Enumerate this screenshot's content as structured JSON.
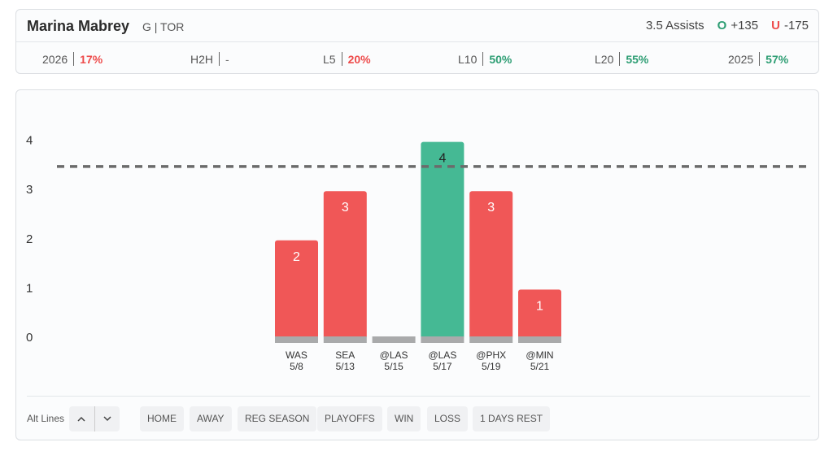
{
  "player": {
    "name": "Marina Mabrey",
    "meta": "G | TOR",
    "prop": "3.5 Assists",
    "over_tag": "O",
    "over_odds": "+135",
    "under_tag": "U",
    "under_odds": "-175"
  },
  "stats": [
    {
      "label": "2026",
      "value": "17%",
      "tone": "red"
    },
    {
      "label": "H2H",
      "value": "-",
      "tone": "neutral"
    },
    {
      "label": "L5",
      "value": "20%",
      "tone": "red"
    },
    {
      "label": "L10",
      "value": "50%",
      "tone": "green"
    },
    {
      "label": "L20",
      "value": "55%",
      "tone": "green"
    },
    {
      "label": "2025",
      "value": "57%",
      "tone": "green"
    }
  ],
  "colors": {
    "over": "#45b994",
    "under": "#f05757",
    "base": "#a9aaab",
    "line": "#6b6b6b",
    "green_text": "#2e9e74",
    "red_text": "#ee4b4b"
  },
  "chart_data": {
    "type": "bar",
    "title": "",
    "xlabel": "",
    "ylabel": "",
    "ylim": [
      0,
      4
    ],
    "yticks": [
      "0",
      "1",
      "2",
      "3",
      "4"
    ],
    "line_value": 3.5,
    "categories": [
      {
        "opponent": "WAS",
        "date": "5/8",
        "value": 2
      },
      {
        "opponent": "SEA",
        "date": "5/13",
        "value": 3
      },
      {
        "opponent": "@LAS",
        "date": "5/15",
        "value": 0
      },
      {
        "opponent": "@LAS",
        "date": "5/17",
        "value": 4
      },
      {
        "opponent": "@PHX",
        "date": "5/19",
        "value": 3
      },
      {
        "opponent": "@MIN",
        "date": "5/21",
        "value": 1
      }
    ],
    "grid": false,
    "legend": "none"
  },
  "filters": {
    "alt_lines_label": "Alt Lines",
    "stepper_up": "^",
    "stepper_down": "v",
    "chips": [
      "HOME",
      "AWAY",
      "REG SEASON",
      "PLAYOFFS",
      "WIN",
      "LOSS",
      "1 DAYS REST"
    ]
  }
}
